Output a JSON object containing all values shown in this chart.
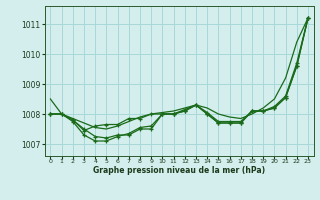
{
  "title": "Graphe pression niveau de la mer (hPa)",
  "bg_color": "#d4eeee",
  "grid_color": "#a8d8d8",
  "line_color": "#1a6b1a",
  "x_labels": [
    "0",
    "1",
    "2",
    "3",
    "4",
    "5",
    "6",
    "7",
    "8",
    "9",
    "10",
    "11",
    "12",
    "13",
    "14",
    "15",
    "16",
    "17",
    "18",
    "19",
    "20",
    "21",
    "22",
    "23"
  ],
  "ylim": [
    1006.6,
    1011.6
  ],
  "yticks": [
    1007,
    1008,
    1009,
    1010,
    1011
  ],
  "series_smooth": [
    1008.5,
    1008.0,
    1007.85,
    1007.7,
    1007.55,
    1007.5,
    1007.6,
    1007.75,
    1007.9,
    1008.0,
    1008.05,
    1008.1,
    1008.2,
    1008.3,
    1008.2,
    1008.0,
    1007.9,
    1007.85,
    1008.0,
    1008.2,
    1008.5,
    1009.2,
    1010.4,
    1011.2
  ],
  "series_marker1": [
    1008.0,
    1008.0,
    1007.8,
    1007.5,
    1007.25,
    1007.2,
    1007.3,
    1007.3,
    1007.5,
    1007.5,
    1008.0,
    1008.0,
    1008.1,
    1008.3,
    1008.0,
    1007.7,
    1007.7,
    1007.7,
    1008.1,
    1008.1,
    1008.2,
    1008.55,
    1009.6,
    1011.2
  ],
  "series_marker2": [
    1008.0,
    1008.0,
    1007.8,
    1007.45,
    1007.6,
    1007.65,
    1007.65,
    1007.85,
    1007.85,
    1008.0,
    1008.0,
    1008.0,
    1008.15,
    1008.3,
    1008.05,
    1007.75,
    1007.75,
    1007.75,
    1008.1,
    1008.1,
    1008.25,
    1008.6,
    1009.7,
    1011.2
  ],
  "series_marker3": [
    1008.0,
    1008.0,
    1007.75,
    1007.3,
    1007.1,
    1007.1,
    1007.25,
    1007.35,
    1007.55,
    1007.6,
    1008.0,
    1008.0,
    1008.1,
    1008.3,
    1008.0,
    1007.7,
    1007.7,
    1007.7,
    1008.1,
    1008.1,
    1008.2,
    1008.55,
    1009.6,
    1011.2
  ]
}
